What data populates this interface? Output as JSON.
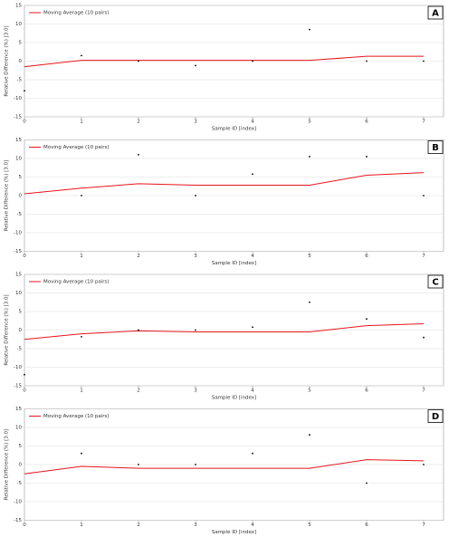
{
  "chart_data": [
    {
      "type": "scatter",
      "panel_label": "A",
      "xlabel": "Sample ID [index]",
      "ylabel": "Relative Difference (%) [3.0]",
      "xlim": [
        0,
        7.35
      ],
      "xticks": [
        0,
        1,
        2,
        3,
        4,
        5,
        6,
        7
      ],
      "ylim": [
        -15,
        15
      ],
      "yticks": [
        -15,
        -10,
        -5,
        0,
        5,
        10,
        15
      ],
      "grid": true,
      "legend": "upper-left",
      "points": {
        "color": "#000000",
        "x": [
          0,
          1,
          2,
          3,
          4,
          5,
          6,
          7
        ],
        "values": [
          -8,
          1.5,
          0,
          -1.2,
          0,
          8.5,
          0,
          0
        ]
      },
      "series": [
        {
          "name": "Moving Average (10 pairs)",
          "color": "#e8141b",
          "x": [
            0,
            1,
            2,
            3,
            4,
            5,
            6,
            7
          ],
          "values": [
            -1.5,
            0.2,
            0.2,
            0.2,
            0.2,
            0.2,
            1.3,
            1.3
          ]
        }
      ]
    },
    {
      "type": "scatter",
      "panel_label": "B",
      "xlabel": "Sample ID [index]",
      "ylabel": "Relative Difference (%) [3.0]",
      "xlim": [
        0,
        7.35
      ],
      "xticks": [
        0,
        1,
        2,
        3,
        4,
        5,
        6,
        7
      ],
      "ylim": [
        -15,
        15
      ],
      "yticks": [
        -15,
        -10,
        -5,
        0,
        5,
        10,
        15
      ],
      "grid": true,
      "legend": "upper-left",
      "points": {
        "color": "#000000",
        "x": [
          1,
          2,
          3,
          4,
          5,
          6,
          7
        ],
        "values": [
          0,
          11,
          0,
          5.8,
          10.5,
          10.5,
          0
        ]
      },
      "series": [
        {
          "name": "Moving Average (10 pairs)",
          "color": "#e8141b",
          "x": [
            0,
            1,
            2,
            3,
            4,
            5,
            6,
            7
          ],
          "values": [
            0.5,
            2,
            3.2,
            2.8,
            2.8,
            2.8,
            5.5,
            6.2
          ]
        }
      ]
    },
    {
      "type": "scatter",
      "panel_label": "C",
      "xlabel": "Sample ID [index]",
      "ylabel": "Relative Difference (%) [3.0]",
      "xlim": [
        0,
        7.35
      ],
      "xticks": [
        0,
        1,
        2,
        3,
        4,
        5,
        6,
        7
      ],
      "ylim": [
        -15,
        15
      ],
      "yticks": [
        -15,
        -10,
        -5,
        0,
        5,
        10,
        15
      ],
      "grid": true,
      "legend": "upper-left",
      "points": {
        "color": "#000000",
        "x": [
          0,
          1,
          2,
          3,
          4,
          5,
          6,
          7
        ],
        "values": [
          -12,
          -1.8,
          0,
          0,
          0.8,
          7.5,
          3,
          -2
        ]
      },
      "series": [
        {
          "name": "Moving Average (10 pairs)",
          "color": "#e8141b",
          "x": [
            0,
            1,
            2,
            3,
            4,
            5,
            6,
            7
          ],
          "values": [
            -2.5,
            -1,
            -0.2,
            -0.5,
            -0.5,
            -0.5,
            1.2,
            1.7
          ]
        }
      ]
    },
    {
      "type": "scatter",
      "panel_label": "D",
      "xlabel": "Sample ID [index]",
      "ylabel": "Relative Difference (%) [3.0]",
      "xlim": [
        0,
        7.35
      ],
      "xticks": [
        0,
        1,
        2,
        3,
        4,
        5,
        6,
        7
      ],
      "ylim": [
        -15,
        15
      ],
      "yticks": [
        -15,
        -10,
        -5,
        0,
        5,
        10,
        15
      ],
      "grid": true,
      "legend": "upper-left",
      "points": {
        "color": "#000000",
        "x": [
          1,
          2,
          3,
          4,
          5,
          6,
          7
        ],
        "values": [
          3,
          0,
          0,
          3,
          8,
          -5,
          0
        ]
      },
      "series": [
        {
          "name": "Moving Average (10 pairs)",
          "color": "#e8141b",
          "x": [
            0,
            1,
            2,
            3,
            4,
            5,
            6,
            7
          ],
          "values": [
            -2.5,
            -0.5,
            -1,
            -1,
            -1,
            -1,
            1.3,
            1
          ]
        }
      ]
    }
  ]
}
